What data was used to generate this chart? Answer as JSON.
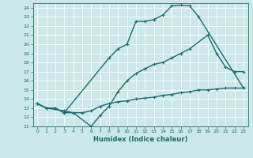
{
  "title": "",
  "xlabel": "Humidex (Indice chaleur)",
  "xlim": [
    -0.5,
    23.5
  ],
  "ylim": [
    11,
    24.5
  ],
  "yticks": [
    11,
    12,
    13,
    14,
    15,
    16,
    17,
    18,
    19,
    20,
    21,
    22,
    23,
    24
  ],
  "xticks": [
    0,
    1,
    2,
    3,
    4,
    5,
    6,
    7,
    8,
    9,
    10,
    11,
    12,
    13,
    14,
    15,
    16,
    17,
    18,
    19,
    20,
    21,
    22,
    23
  ],
  "bg_color": "#cce8e8",
  "line_color": "#1a6e6e",
  "grid_color": "#ffffff",
  "line1_x": [
    0,
    1,
    2,
    3,
    8,
    9,
    10,
    11,
    12,
    13,
    14,
    15,
    16,
    17,
    18,
    23
  ],
  "line1_y": [
    13.5,
    13.0,
    13.0,
    12.5,
    18.5,
    19.5,
    20.0,
    22.5,
    22.5,
    22.7,
    23.2,
    24.2,
    24.3,
    24.2,
    23.0,
    15.2
  ],
  "line2_x": [
    0,
    1,
    3,
    4,
    6,
    7,
    8,
    9,
    10,
    11,
    12,
    13,
    14,
    15,
    16,
    17,
    19,
    20,
    21,
    22,
    23
  ],
  "line2_y": [
    13.5,
    13.0,
    12.7,
    12.5,
    11.0,
    12.2,
    13.2,
    14.8,
    16.0,
    16.8,
    17.3,
    17.8,
    18.0,
    18.5,
    19.0,
    19.5,
    21.0,
    19.0,
    17.5,
    17.0,
    17.0
  ],
  "line3_x": [
    0,
    1,
    2,
    3,
    4,
    5,
    6,
    7,
    8,
    9,
    10,
    11,
    12,
    13,
    14,
    15,
    16,
    17,
    18,
    19,
    20,
    21,
    22,
    23
  ],
  "line3_y": [
    13.5,
    13.0,
    13.0,
    12.5,
    12.5,
    12.5,
    12.7,
    13.2,
    13.5,
    13.7,
    13.8,
    14.0,
    14.1,
    14.2,
    14.4,
    14.5,
    14.7,
    14.8,
    15.0,
    15.0,
    15.1,
    15.2,
    15.2,
    15.2
  ],
  "marker": "+",
  "markersize": 3.5,
  "linewidth": 1.0
}
